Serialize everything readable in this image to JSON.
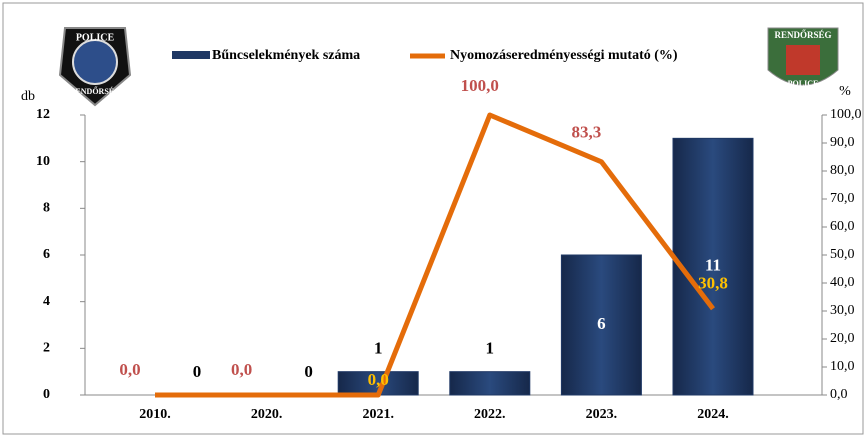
{
  "chart_data": {
    "type": "bar_line",
    "categories": [
      "2010.",
      "2020.",
      "2021.",
      "2022.",
      "2023.",
      "2024."
    ],
    "series": [
      {
        "name": "Bűncselekmények száma",
        "type": "bar",
        "color": "#1f3864",
        "values": [
          0,
          0,
          1,
          1,
          6,
          11
        ]
      },
      {
        "name": "Nyomozáseredményességi mutató (%)",
        "type": "line",
        "axis": "y2",
        "color": "#e46c0a",
        "values": [
          0,
          0,
          0,
          100,
          83.3,
          30.8
        ],
        "value_labels": [
          "0,0",
          "0,0",
          "0,0",
          "100,0",
          "83,3",
          "30,8"
        ],
        "value_label_colors": [
          "#c0504d",
          "#c0504d",
          "#ffc000",
          "#c0504d",
          "#c0504d",
          "#ffc000"
        ]
      }
    ],
    "ylabel": "db",
    "y2label": "%",
    "ylim": [
      0,
      12
    ],
    "yticks": [
      0,
      2,
      4,
      6,
      8,
      10,
      12
    ],
    "y2lim": [
      0,
      100
    ],
    "y2ticks": [
      {
        "value": 0,
        "label": "0,0"
      },
      {
        "value": 10,
        "label": "10,0"
      },
      {
        "value": 20,
        "label": "20,0"
      },
      {
        "value": 30,
        "label": "30,0"
      },
      {
        "value": 40,
        "label": "40,0"
      },
      {
        "value": 50,
        "label": "50,0"
      },
      {
        "value": 60,
        "label": "60,0"
      },
      {
        "value": 70,
        "label": "70,0"
      },
      {
        "value": 80,
        "label": "80,0"
      },
      {
        "value": 90,
        "label": "90,0"
      },
      {
        "value": 100,
        "label": "100,0"
      }
    ],
    "legend": "top"
  },
  "logos": {
    "left": [
      "POLICE",
      "RENDŐRSÉG"
    ],
    "right": [
      "RENDŐRSÉG",
      "POLICE"
    ]
  }
}
